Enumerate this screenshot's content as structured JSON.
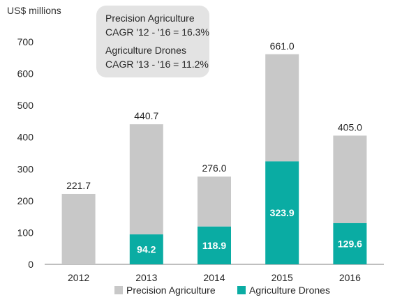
{
  "unit_label": "US$ millions",
  "annotations": {
    "precision_title": "Precision Agriculture",
    "precision_cagr": "CAGR '12 - '16 = 16.3%",
    "drones_title": "Agriculture Drones",
    "drones_cagr": "CAGR '13 - '16 = 11.2%"
  },
  "colors": {
    "precision": "#c8c8c8",
    "drones": "#0aaca3",
    "axis": "#7f7f7f",
    "text": "#262626",
    "drone_label": "#ffffff",
    "box": "#e3e3e3"
  },
  "chart_data": {
    "type": "bar",
    "stacked": true,
    "categories": [
      "2012",
      "2013",
      "2014",
      "2015",
      "2016"
    ],
    "series": [
      {
        "name": "Precision Agriculture",
        "values": [
          221.7,
          346.5,
          157.1,
          337.1,
          275.4
        ]
      },
      {
        "name": "Agriculture Drones",
        "values": [
          0,
          94.2,
          118.9,
          323.9,
          129.6
        ]
      }
    ],
    "totals": [
      "221.7",
      "440.7",
      "276.0",
      "661.0",
      "405.0"
    ],
    "drone_labels": [
      "",
      "94.2",
      "118.9",
      "323.9",
      "129.6"
    ],
    "ylabel": "US$ millions",
    "ylim": [
      0,
      700
    ],
    "yticks": [
      "0",
      "100",
      "200",
      "300",
      "400",
      "500",
      "600",
      "700"
    ],
    "grid": false,
    "legend_position": "bottom"
  }
}
